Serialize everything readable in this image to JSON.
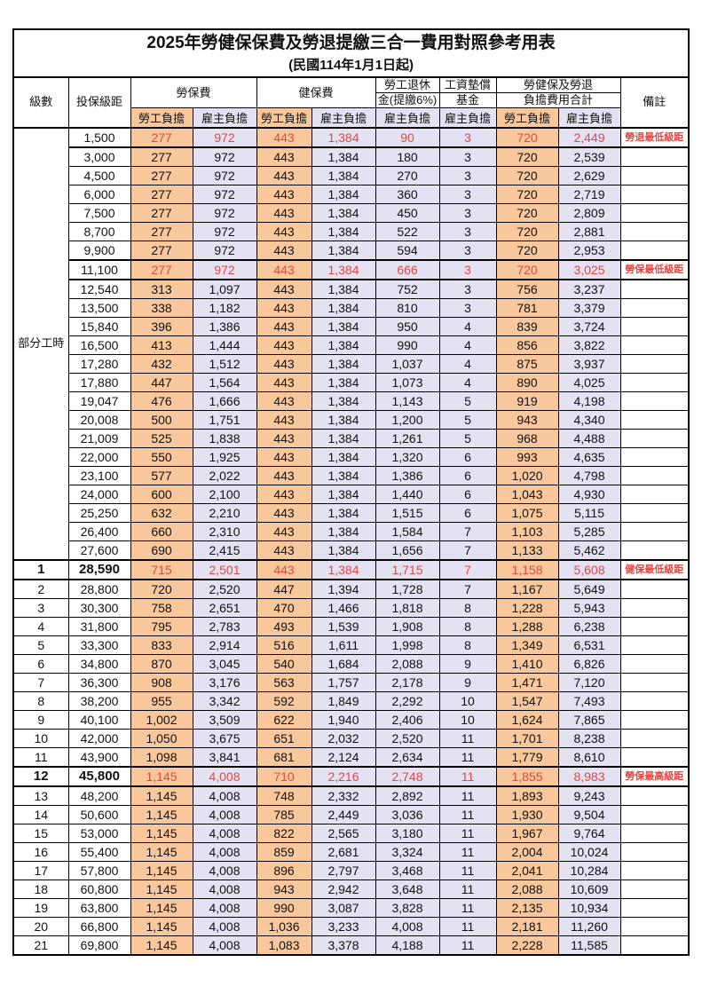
{
  "page": {
    "title": "2025年勞健保保費及勞退提繳三合一費用對照參考用表",
    "subtitle": "(民國114年1月1日起)"
  },
  "colors": {
    "employee_column_bg": "#F8C89C",
    "employer_column_bg": "#E4E2F2",
    "highlight_text": "#E8453F",
    "border": "#000000",
    "background": "#FFFFFF"
  },
  "header": {
    "level": "級數",
    "salary_bracket": "投保級距",
    "labor_insurance": "勞保費",
    "health_insurance": "健保費",
    "pension_line1": "勞工退休",
    "pension_line2": "金(提繳6%)",
    "wage_fund_line1": "工資墊償",
    "wage_fund_line2": "基金",
    "total_line1": "勞健保及勞退",
    "total_line2": "負擔費用合計",
    "remarks": "備註",
    "employee_share": "勞工負擔",
    "employer_share": "雇主負擔"
  },
  "group_label": "部分工時",
  "group_rowspan": 23,
  "rows": [
    {
      "level": "",
      "salary": "1,500",
      "values": [
        "277",
        "972",
        "443",
        "1,384",
        "90",
        "3",
        "720",
        "2,449"
      ],
      "note": "勞退最低級距",
      "highlight": true,
      "bold": false
    },
    {
      "level": "",
      "salary": "3,000",
      "values": [
        "277",
        "972",
        "443",
        "1,384",
        "180",
        "3",
        "720",
        "2,539"
      ],
      "note": "",
      "highlight": false,
      "bold": false
    },
    {
      "level": "",
      "salary": "4,500",
      "values": [
        "277",
        "972",
        "443",
        "1,384",
        "270",
        "3",
        "720",
        "2,629"
      ],
      "note": "",
      "highlight": false,
      "bold": false
    },
    {
      "level": "",
      "salary": "6,000",
      "values": [
        "277",
        "972",
        "443",
        "1,384",
        "360",
        "3",
        "720",
        "2,719"
      ],
      "note": "",
      "highlight": false,
      "bold": false
    },
    {
      "level": "",
      "salary": "7,500",
      "values": [
        "277",
        "972",
        "443",
        "1,384",
        "450",
        "3",
        "720",
        "2,809"
      ],
      "note": "",
      "highlight": false,
      "bold": false
    },
    {
      "level": "",
      "salary": "8,700",
      "values": [
        "277",
        "972",
        "443",
        "1,384",
        "522",
        "3",
        "720",
        "2,881"
      ],
      "note": "",
      "highlight": false,
      "bold": false
    },
    {
      "level": "",
      "salary": "9,900",
      "values": [
        "277",
        "972",
        "443",
        "1,384",
        "594",
        "3",
        "720",
        "2,953"
      ],
      "note": "",
      "highlight": false,
      "bold": false
    },
    {
      "level": "",
      "salary": "11,100",
      "values": [
        "277",
        "972",
        "443",
        "1,384",
        "666",
        "3",
        "720",
        "3,025"
      ],
      "note": "勞保最低級距",
      "highlight": true,
      "bold": false
    },
    {
      "level": "",
      "salary": "12,540",
      "values": [
        "313",
        "1,097",
        "443",
        "1,384",
        "752",
        "3",
        "756",
        "3,237"
      ],
      "note": "",
      "highlight": false,
      "bold": false
    },
    {
      "level": "",
      "salary": "13,500",
      "values": [
        "338",
        "1,182",
        "443",
        "1,384",
        "810",
        "3",
        "781",
        "3,379"
      ],
      "note": "",
      "highlight": false,
      "bold": false
    },
    {
      "level": "",
      "salary": "15,840",
      "values": [
        "396",
        "1,386",
        "443",
        "1,384",
        "950",
        "4",
        "839",
        "3,724"
      ],
      "note": "",
      "highlight": false,
      "bold": false
    },
    {
      "level": "",
      "salary": "16,500",
      "values": [
        "413",
        "1,444",
        "443",
        "1,384",
        "990",
        "4",
        "856",
        "3,822"
      ],
      "note": "",
      "highlight": false,
      "bold": false
    },
    {
      "level": "",
      "salary": "17,280",
      "values": [
        "432",
        "1,512",
        "443",
        "1,384",
        "1,037",
        "4",
        "875",
        "3,937"
      ],
      "note": "",
      "highlight": false,
      "bold": false
    },
    {
      "level": "",
      "salary": "17,880",
      "values": [
        "447",
        "1,564",
        "443",
        "1,384",
        "1,073",
        "4",
        "890",
        "4,025"
      ],
      "note": "",
      "highlight": false,
      "bold": false
    },
    {
      "level": "",
      "salary": "19,047",
      "values": [
        "476",
        "1,666",
        "443",
        "1,384",
        "1,143",
        "5",
        "919",
        "4,198"
      ],
      "note": "",
      "highlight": false,
      "bold": false
    },
    {
      "level": "",
      "salary": "20,008",
      "values": [
        "500",
        "1,751",
        "443",
        "1,384",
        "1,200",
        "5",
        "943",
        "4,340"
      ],
      "note": "",
      "highlight": false,
      "bold": false
    },
    {
      "level": "",
      "salary": "21,009",
      "values": [
        "525",
        "1,838",
        "443",
        "1,384",
        "1,261",
        "5",
        "968",
        "4,488"
      ],
      "note": "",
      "highlight": false,
      "bold": false
    },
    {
      "level": "",
      "salary": "22,000",
      "values": [
        "550",
        "1,925",
        "443",
        "1,384",
        "1,320",
        "6",
        "993",
        "4,635"
      ],
      "note": "",
      "highlight": false,
      "bold": false
    },
    {
      "level": "",
      "salary": "23,100",
      "values": [
        "577",
        "2,022",
        "443",
        "1,384",
        "1,386",
        "6",
        "1,020",
        "4,798"
      ],
      "note": "",
      "highlight": false,
      "bold": false
    },
    {
      "level": "",
      "salary": "24,000",
      "values": [
        "600",
        "2,100",
        "443",
        "1,384",
        "1,440",
        "6",
        "1,043",
        "4,930"
      ],
      "note": "",
      "highlight": false,
      "bold": false
    },
    {
      "level": "",
      "salary": "25,250",
      "values": [
        "632",
        "2,210",
        "443",
        "1,384",
        "1,515",
        "6",
        "1,075",
        "5,115"
      ],
      "note": "",
      "highlight": false,
      "bold": false
    },
    {
      "level": "",
      "salary": "26,400",
      "values": [
        "660",
        "2,310",
        "443",
        "1,384",
        "1,584",
        "7",
        "1,103",
        "5,285"
      ],
      "note": "",
      "highlight": false,
      "bold": false
    },
    {
      "level": "",
      "salary": "27,600",
      "values": [
        "690",
        "2,415",
        "443",
        "1,384",
        "1,656",
        "7",
        "1,133",
        "5,462"
      ],
      "note": "",
      "highlight": false,
      "bold": false
    },
    {
      "level": "1",
      "salary": "28,590",
      "values": [
        "715",
        "2,501",
        "443",
        "1,384",
        "1,715",
        "7",
        "1,158",
        "5,608"
      ],
      "note": "健保最低級距",
      "highlight": true,
      "bold": true
    },
    {
      "level": "2",
      "salary": "28,800",
      "values": [
        "720",
        "2,520",
        "447",
        "1,394",
        "1,728",
        "7",
        "1,167",
        "5,649"
      ],
      "note": "",
      "highlight": false,
      "bold": false
    },
    {
      "level": "3",
      "salary": "30,300",
      "values": [
        "758",
        "2,651",
        "470",
        "1,466",
        "1,818",
        "8",
        "1,228",
        "5,943"
      ],
      "note": "",
      "highlight": false,
      "bold": false
    },
    {
      "level": "4",
      "salary": "31,800",
      "values": [
        "795",
        "2,783",
        "493",
        "1,539",
        "1,908",
        "8",
        "1,288",
        "6,238"
      ],
      "note": "",
      "highlight": false,
      "bold": false
    },
    {
      "level": "5",
      "salary": "33,300",
      "values": [
        "833",
        "2,914",
        "516",
        "1,611",
        "1,998",
        "8",
        "1,349",
        "6,531"
      ],
      "note": "",
      "highlight": false,
      "bold": false
    },
    {
      "level": "6",
      "salary": "34,800",
      "values": [
        "870",
        "3,045",
        "540",
        "1,684",
        "2,088",
        "9",
        "1,410",
        "6,826"
      ],
      "note": "",
      "highlight": false,
      "bold": false
    },
    {
      "level": "7",
      "salary": "36,300",
      "values": [
        "908",
        "3,176",
        "563",
        "1,757",
        "2,178",
        "9",
        "1,471",
        "7,120"
      ],
      "note": "",
      "highlight": false,
      "bold": false
    },
    {
      "level": "8",
      "salary": "38,200",
      "values": [
        "955",
        "3,342",
        "592",
        "1,849",
        "2,292",
        "10",
        "1,547",
        "7,493"
      ],
      "note": "",
      "highlight": false,
      "bold": false
    },
    {
      "level": "9",
      "salary": "40,100",
      "values": [
        "1,002",
        "3,509",
        "622",
        "1,940",
        "2,406",
        "10",
        "1,624",
        "7,865"
      ],
      "note": "",
      "highlight": false,
      "bold": false
    },
    {
      "level": "10",
      "salary": "42,000",
      "values": [
        "1,050",
        "3,675",
        "651",
        "2,032",
        "2,520",
        "11",
        "1,701",
        "8,238"
      ],
      "note": "",
      "highlight": false,
      "bold": false
    },
    {
      "level": "11",
      "salary": "43,900",
      "values": [
        "1,098",
        "3,841",
        "681",
        "2,124",
        "2,634",
        "11",
        "1,779",
        "8,610"
      ],
      "note": "",
      "highlight": false,
      "bold": false
    },
    {
      "level": "12",
      "salary": "45,800",
      "values": [
        "1,145",
        "4,008",
        "710",
        "2,216",
        "2,748",
        "11",
        "1,855",
        "8,983"
      ],
      "note": "勞保最高級距",
      "highlight": true,
      "bold": true
    },
    {
      "level": "13",
      "salary": "48,200",
      "values": [
        "1,145",
        "4,008",
        "748",
        "2,332",
        "2,892",
        "11",
        "1,893",
        "9,243"
      ],
      "note": "",
      "highlight": false,
      "bold": false
    },
    {
      "level": "14",
      "salary": "50,600",
      "values": [
        "1,145",
        "4,008",
        "785",
        "2,449",
        "3,036",
        "11",
        "1,930",
        "9,504"
      ],
      "note": "",
      "highlight": false,
      "bold": false
    },
    {
      "level": "15",
      "salary": "53,000",
      "values": [
        "1,145",
        "4,008",
        "822",
        "2,565",
        "3,180",
        "11",
        "1,967",
        "9,764"
      ],
      "note": "",
      "highlight": false,
      "bold": false
    },
    {
      "level": "16",
      "salary": "55,400",
      "values": [
        "1,145",
        "4,008",
        "859",
        "2,681",
        "3,324",
        "11",
        "2,004",
        "10,024"
      ],
      "note": "",
      "highlight": false,
      "bold": false
    },
    {
      "level": "17",
      "salary": "57,800",
      "values": [
        "1,145",
        "4,008",
        "896",
        "2,797",
        "3,468",
        "11",
        "2,041",
        "10,284"
      ],
      "note": "",
      "highlight": false,
      "bold": false
    },
    {
      "level": "18",
      "salary": "60,800",
      "values": [
        "1,145",
        "4,008",
        "943",
        "2,942",
        "3,648",
        "11",
        "2,088",
        "10,609"
      ],
      "note": "",
      "highlight": false,
      "bold": false
    },
    {
      "level": "19",
      "salary": "63,800",
      "values": [
        "1,145",
        "4,008",
        "990",
        "3,087",
        "3,828",
        "11",
        "2,135",
        "10,934"
      ],
      "note": "",
      "highlight": false,
      "bold": false
    },
    {
      "level": "20",
      "salary": "66,800",
      "values": [
        "1,145",
        "4,008",
        "1,036",
        "3,233",
        "4,008",
        "11",
        "2,181",
        "11,260"
      ],
      "note": "",
      "highlight": false,
      "bold": false
    },
    {
      "level": "21",
      "salary": "69,800",
      "values": [
        "1,145",
        "4,008",
        "1,083",
        "3,378",
        "4,188",
        "11",
        "2,228",
        "11,585"
      ],
      "note": "",
      "highlight": false,
      "bold": false
    }
  ]
}
